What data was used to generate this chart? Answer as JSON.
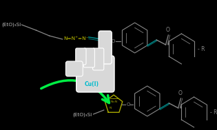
{
  "background_color": "#000000",
  "fig_width": 3.15,
  "fig_height": 1.89,
  "dpi": 100,
  "azide_label": "N=N⁺=N⁻",
  "azide_color": "#c8c800",
  "etosi_label": "(EtO)₃Si",
  "etosi_color": "#bbbbbb",
  "cui_label": "Cu(I)",
  "cui_color": "#00bbcc",
  "alkene_color": "#008888",
  "ring_color": "#666666",
  "outline_color": "#888888",
  "arrow_color": "#00ee44",
  "triazole_color": "#aaaa00",
  "r_label": "R",
  "o_label": "O"
}
